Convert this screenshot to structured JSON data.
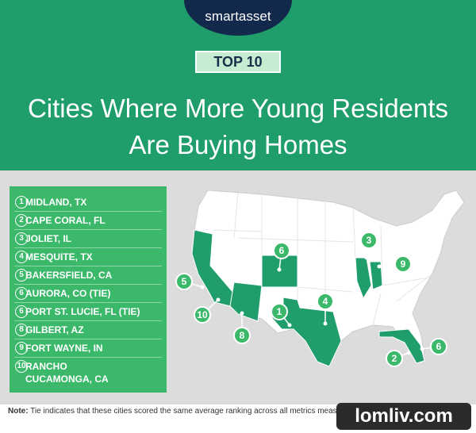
{
  "header": {
    "logo": "smartasset",
    "badge": "TOP 10",
    "title_lines": [
      "Cities Where More Young Residents",
      "Are Buying Homes"
    ]
  },
  "list": [
    {
      "rank": "1",
      "name": "MIDLAND, TX"
    },
    {
      "rank": "2",
      "name": "CAPE CORAL, FL"
    },
    {
      "rank": "3",
      "name": "JOLIET, IL"
    },
    {
      "rank": "4",
      "name": "MESQUITE, TX"
    },
    {
      "rank": "5",
      "name": "BAKERSFIELD, CA"
    },
    {
      "rank": "6",
      "name": "AURORA, CO (TIE)"
    },
    {
      "rank": "6",
      "name": "PORT ST. LUCIE, FL (TIE)"
    },
    {
      "rank": "8",
      "name": "GILBERT, AZ"
    },
    {
      "rank": "9",
      "name": "FORT WAYNE, IN"
    },
    {
      "rank": "10",
      "name": "RANCHO CUCAMONGA, CA"
    }
  ],
  "map": {
    "markers": [
      {
        "label": "1"
      },
      {
        "label": "2"
      },
      {
        "label": "3"
      },
      {
        "label": "4"
      },
      {
        "label": "5"
      },
      {
        "label": "6"
      },
      {
        "label": "6"
      },
      {
        "label": "8"
      },
      {
        "label": "9"
      },
      {
        "label": "10"
      }
    ]
  },
  "note": {
    "label": "Note:",
    "text": "Tie indicates that these cities scored the same average ranking across all metrics measured."
  },
  "watermark": "lomliv.com"
}
